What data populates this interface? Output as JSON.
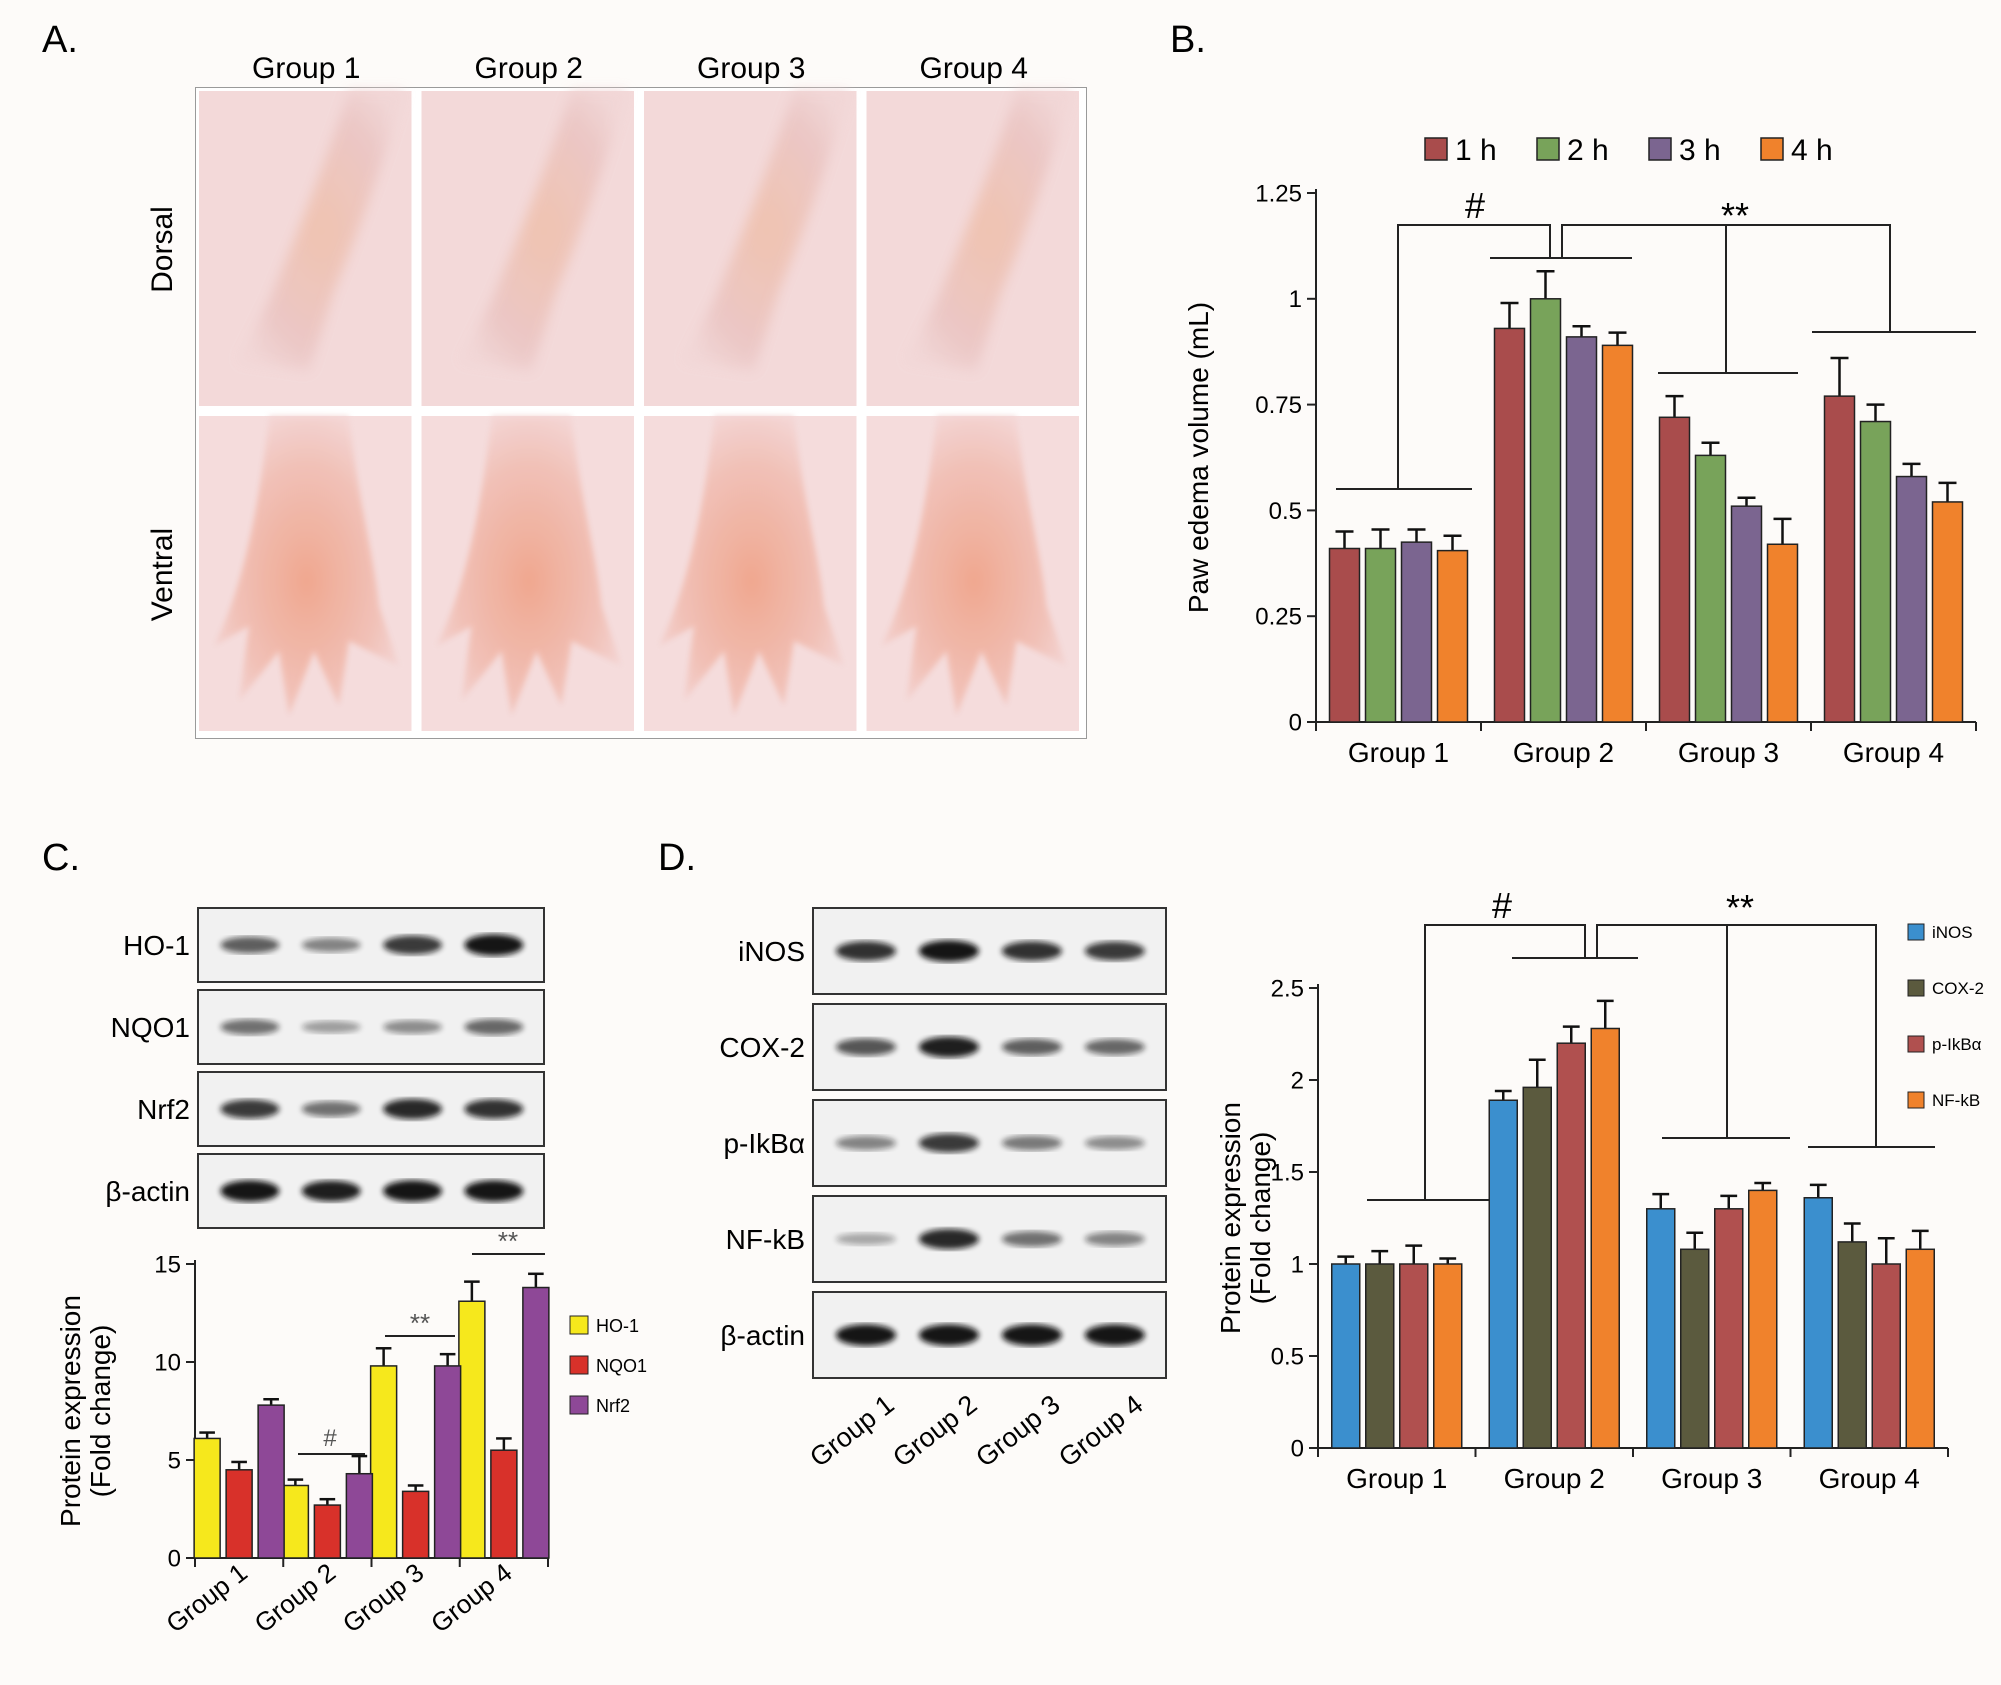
{
  "panel_labels": {
    "a": "A.",
    "b": "B.",
    "c": "C.",
    "d": "D."
  },
  "photo_panel": {
    "groups": [
      "Group 1",
      "Group 2",
      "Group 3",
      "Group 4"
    ],
    "rows": [
      "Dorsal",
      "Ventral"
    ]
  },
  "blot_c": {
    "proteins": [
      "HO-1",
      "NQO1",
      "Nrf2",
      "β-actin"
    ],
    "band_intensity": [
      [
        0.55,
        0.35,
        0.75,
        0.95
      ],
      [
        0.45,
        0.2,
        0.3,
        0.5
      ],
      [
        0.75,
        0.45,
        0.85,
        0.8
      ],
      [
        0.95,
        0.9,
        0.95,
        0.95
      ]
    ]
  },
  "blot_d": {
    "proteins": [
      "iNOS",
      "COX-2",
      "p-IkBα",
      "NF-kB",
      "β-actin"
    ],
    "band_intensity": [
      [
        0.8,
        0.95,
        0.8,
        0.75
      ],
      [
        0.6,
        0.9,
        0.55,
        0.5
      ],
      [
        0.35,
        0.75,
        0.4,
        0.3
      ],
      [
        0.15,
        0.85,
        0.45,
        0.35
      ],
      [
        0.95,
        0.95,
        0.95,
        0.95
      ]
    ],
    "lane_labels": [
      "Group 1",
      "Group 2",
      "Group 3",
      "Group 4"
    ]
  },
  "chart_data": [
    {
      "id": "B",
      "type": "bar",
      "categories": [
        "Group 1",
        "Group 2",
        "Group 3",
        "Group 4"
      ],
      "ylabel": "Paw edema volume (mL)",
      "ylim": [
        0,
        1.25
      ],
      "yticks": [
        "0",
        "0.25",
        "0.5",
        "0.75",
        "1",
        "1.25"
      ],
      "legend_position": "top",
      "series": [
        {
          "name": "1 h",
          "color": "#a94c4c",
          "values": [
            0.41,
            0.93,
            0.72,
            0.77
          ],
          "err": [
            0.04,
            0.06,
            0.05,
            0.09
          ]
        },
        {
          "name": "2 h",
          "color": "#78a35a",
          "values": [
            0.41,
            1.0,
            0.63,
            0.71
          ],
          "err": [
            0.045,
            0.065,
            0.03,
            0.04
          ]
        },
        {
          "name": "3 h",
          "color": "#7b6590",
          "values": [
            0.425,
            0.91,
            0.51,
            0.58
          ],
          "err": [
            0.03,
            0.025,
            0.02,
            0.03
          ]
        },
        {
          "name": "4 h",
          "color": "#f0822c",
          "values": [
            0.405,
            0.89,
            0.42,
            0.52
          ],
          "err": [
            0.035,
            0.03,
            0.06,
            0.045
          ]
        }
      ],
      "annotations": [
        "#",
        "**"
      ]
    },
    {
      "id": "C",
      "type": "bar",
      "categories": [
        "Group 1",
        "Group 2",
        "Group 3",
        "Group 4"
      ],
      "ylabel": [
        "Protein expression",
        "(Fold change)"
      ],
      "ylim": [
        0,
        15
      ],
      "yticks": [
        "0",
        "5",
        "10",
        "15"
      ],
      "legend_position": "right",
      "series": [
        {
          "name": "HO-1",
          "color": "#f6e81c",
          "values": [
            6.1,
            3.7,
            9.8,
            13.1
          ],
          "err": [
            0.3,
            0.3,
            0.9,
            1.0
          ]
        },
        {
          "name": "NQO1",
          "color": "#d8312a",
          "values": [
            4.5,
            2.7,
            3.4,
            5.5
          ],
          "err": [
            0.4,
            0.3,
            0.3,
            0.6
          ]
        },
        {
          "name": "Nrf2",
          "color": "#8e4897",
          "values": [
            7.8,
            4.3,
            9.8,
            13.8
          ],
          "err": [
            0.3,
            0.9,
            0.6,
            0.7
          ]
        }
      ],
      "annotations": [
        "#",
        "**",
        "**"
      ]
    },
    {
      "id": "D",
      "type": "bar",
      "categories": [
        "Group 1",
        "Group 2",
        "Group 3",
        "Group 4"
      ],
      "ylabel": [
        "Protein expression",
        "(Fold change)"
      ],
      "ylim": [
        0,
        2.5
      ],
      "yticks": [
        "0",
        "0.5",
        "1",
        "1.5",
        "2",
        "2.5"
      ],
      "legend_position": "right",
      "series": [
        {
          "name": "iNOS",
          "color": "#3b8fce",
          "values": [
            1.0,
            1.89,
            1.3,
            1.36
          ],
          "err": [
            0.04,
            0.05,
            0.08,
            0.07
          ]
        },
        {
          "name": "COX-2",
          "color": "#5b5a3e",
          "values": [
            1.0,
            1.96,
            1.08,
            1.12
          ],
          "err": [
            0.07,
            0.15,
            0.09,
            0.1
          ]
        },
        {
          "name": "p-IkBα",
          "color": "#b0504f",
          "values": [
            1.0,
            2.2,
            1.3,
            1.0
          ],
          "err": [
            0.1,
            0.09,
            0.07,
            0.14
          ]
        },
        {
          "name": "NF-kB",
          "color": "#f0822c",
          "values": [
            1.0,
            2.28,
            1.4,
            1.08
          ],
          "err": [
            0.03,
            0.15,
            0.04,
            0.1
          ]
        }
      ],
      "annotations": [
        "#",
        "**"
      ]
    }
  ]
}
